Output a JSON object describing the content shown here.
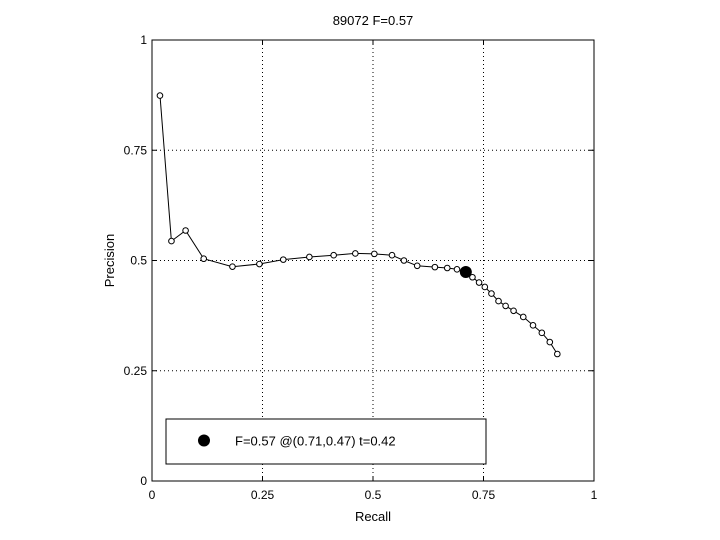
{
  "chart_data": {
    "type": "line",
    "title": "89072 F=0.57",
    "xlabel": "Recall",
    "ylabel": "Precision",
    "xlim": [
      0,
      1
    ],
    "ylim": [
      0,
      1
    ],
    "grid": true,
    "x_ticks": [
      0,
      0.25,
      0.5,
      0.75,
      1
    ],
    "y_ticks": [
      0,
      0.25,
      0.5,
      0.75,
      1
    ],
    "x_tick_labels": [
      "0",
      "0.25",
      "0.5",
      "0.75",
      "1"
    ],
    "y_tick_labels": [
      "0",
      "0.25",
      "0.5",
      "0.75",
      "1"
    ],
    "series": [
      {
        "marker": "open-circle",
        "x": [
          0.018,
          0.044,
          0.076,
          0.117,
          0.182,
          0.243,
          0.297,
          0.356,
          0.411,
          0.46,
          0.503,
          0.543,
          0.57,
          0.6,
          0.64,
          0.668,
          0.69,
          0.71,
          0.725,
          0.74,
          0.753,
          0.768,
          0.784,
          0.8,
          0.818,
          0.84,
          0.862,
          0.882,
          0.9,
          0.917
        ],
        "y": [
          0.874,
          0.544,
          0.568,
          0.504,
          0.486,
          0.492,
          0.502,
          0.508,
          0.512,
          0.516,
          0.515,
          0.512,
          0.5,
          0.488,
          0.485,
          0.483,
          0.48,
          0.474,
          0.462,
          0.45,
          0.44,
          0.425,
          0.408,
          0.397,
          0.386,
          0.372,
          0.353,
          0.336,
          0.315,
          0.288
        ]
      }
    ],
    "highlight_point": {
      "x": 0.71,
      "y": 0.474
    },
    "legend": {
      "placement": "bottom",
      "entries": [
        "F=0.57 @(0.71,0.47) t=0.42"
      ]
    }
  }
}
